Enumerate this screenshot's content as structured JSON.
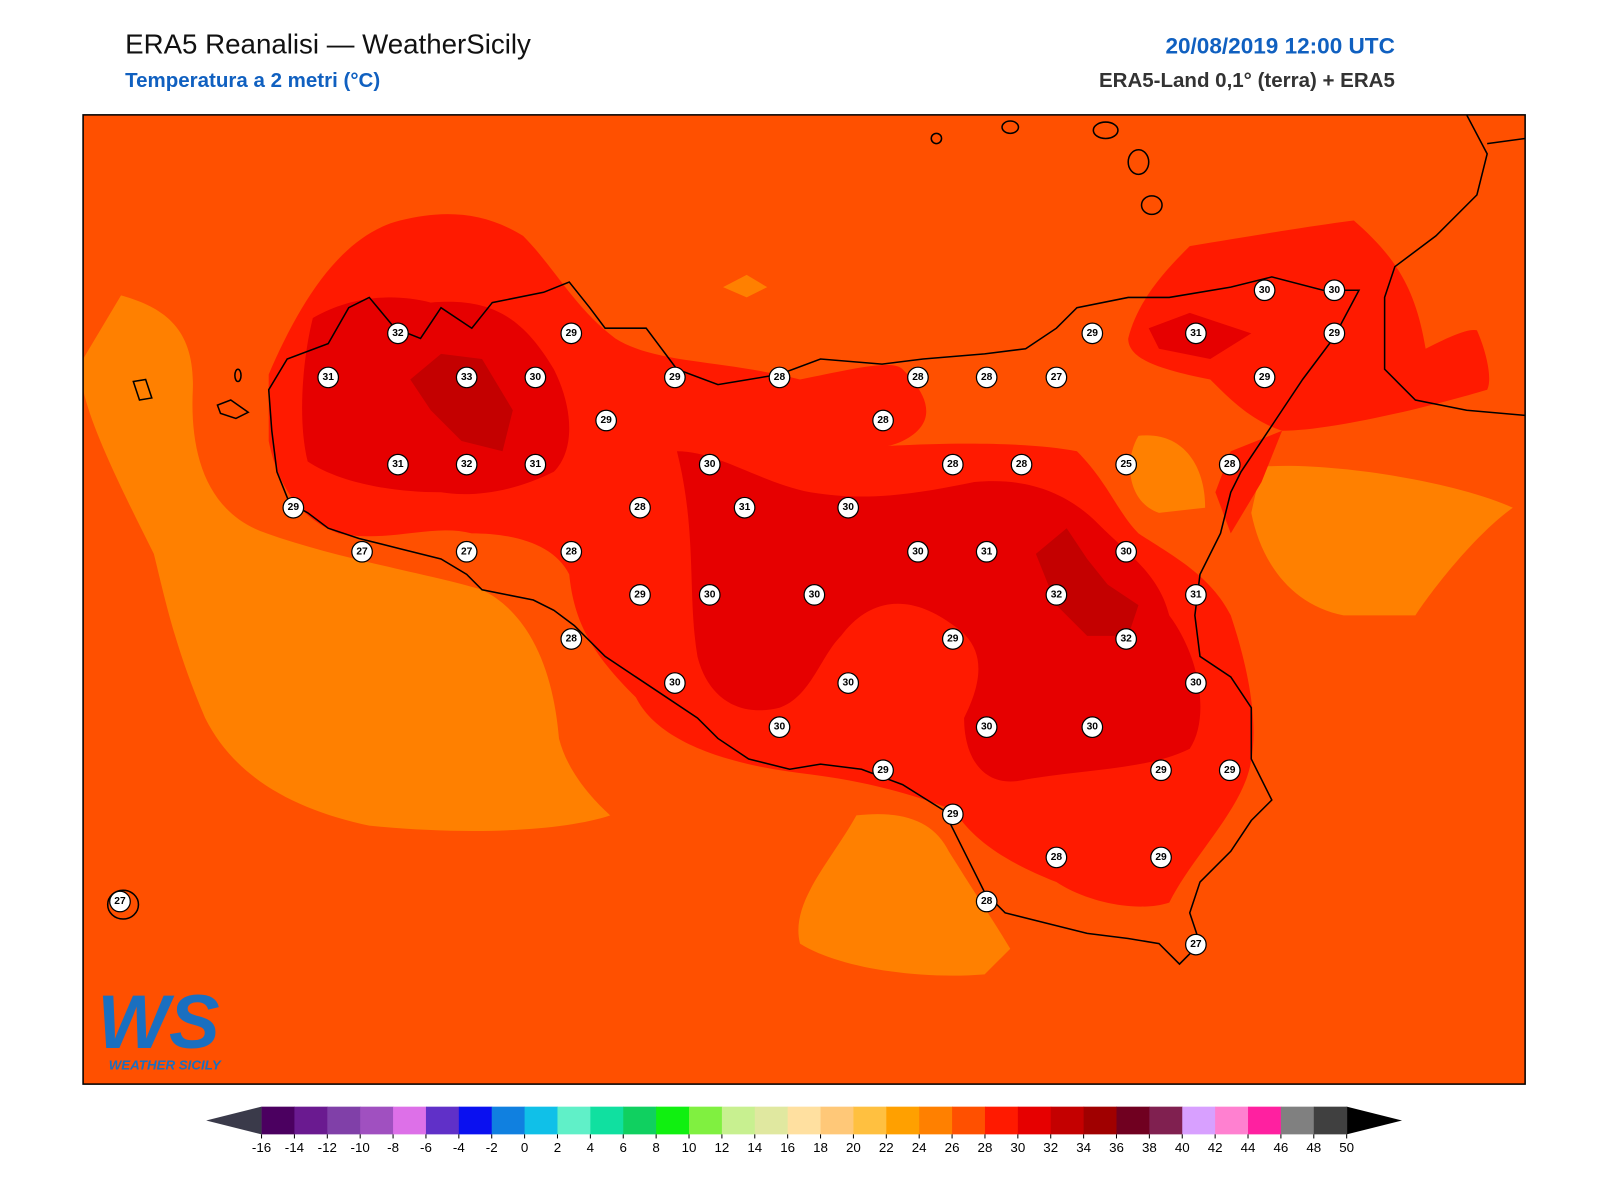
{
  "header": {
    "title": "ERA5 Reanalisi — WeatherSicily",
    "subtitle": "Temperatura a 2 metri (°C)",
    "datetime": "20/08/2019 12:00 UTC",
    "source": "ERA5-Land 0,1° (terra) + ERA5"
  },
  "map": {
    "stations": [
      30,
      30,
      32,
      29,
      29,
      31,
      29,
      31,
      33,
      30,
      29,
      28,
      28,
      28,
      27,
      29,
      29,
      28,
      31,
      32,
      31,
      30,
      28,
      28,
      25,
      28,
      29,
      28,
      31,
      30,
      27,
      27,
      28,
      30,
      31,
      30,
      29,
      30,
      30,
      32,
      31,
      28,
      29,
      32,
      30,
      30,
      30,
      30,
      30,
      30,
      29,
      29,
      29,
      29,
      28,
      29,
      27,
      28,
      27
    ]
  },
  "colorbar": {
    "ticks": [
      -16,
      -14,
      -12,
      -10,
      -8,
      -6,
      -4,
      -2,
      0,
      2,
      4,
      6,
      8,
      10,
      12,
      14,
      16,
      18,
      20,
      22,
      24,
      26,
      28,
      30,
      32,
      34,
      36,
      38,
      40,
      42,
      44,
      46,
      48,
      50
    ],
    "colors": [
      "#4b0060",
      "#6a1a90",
      "#8040a8",
      "#a050c0",
      "#dd70e8",
      "#6030c8",
      "#0a10f0",
      "#1080e0",
      "#10c0e8",
      "#60f0c8",
      "#10e0a0",
      "#10d060",
      "#10f010",
      "#80f040",
      "#c8f090",
      "#e0e8a0",
      "#ffe0a0",
      "#ffc878",
      "#ffc040",
      "#ffa000",
      "#ff8000",
      "#ff5000",
      "#ff1a00",
      "#e60000",
      "#c40000",
      "#a00000",
      "#700020",
      "#802050",
      "#d8a0ff",
      "#ff80d0",
      "#ff20a0",
      "#808080",
      "#404040"
    ],
    "under_color": "#3a3a4a",
    "over_color": "#000000"
  },
  "logo": {
    "text": "WS",
    "subtitle": "WEATHER SICILY"
  }
}
